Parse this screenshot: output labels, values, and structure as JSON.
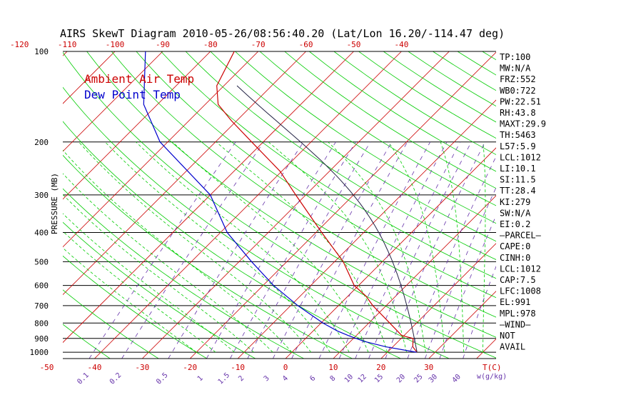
{
  "title": "AIRS SkewT Diagram 2010-05-26/08:56:40.20 (Lat/Lon 16.20/-114.47 deg)",
  "legend": {
    "ambient": "Ambient Air Temp",
    "dewpoint": "Dew Point Temp",
    "colors": {
      "ambient": "#cc0000",
      "dewpoint": "#0000cc",
      "dry_adiabat": "#00cc00",
      "isotherm": "#cc0000",
      "mixing_ratio": "#6633aa",
      "isobar": "#000000"
    }
  },
  "chart_data": {
    "type": "line",
    "title": "AIRS SkewT Diagram 2010-05-26/08:56:40.20 (Lat/Lon 16.20/-114.47 deg)",
    "ylabel": "PRESSURE (MB)",
    "xlabel_bottom": "T(C)",
    "xlabel_mix": "w(g/kg)",
    "y_scale": "log",
    "ylim": [
      1050,
      100
    ],
    "pressure_ticks": [
      "100",
      "200",
      "300",
      "400",
      "500",
      "600",
      "700",
      "800",
      "900",
      "1000"
    ],
    "top_ticks": [
      "-120",
      "-110",
      "-100",
      "-90",
      "-80",
      "-70",
      "-60",
      "-50",
      "-40"
    ],
    "bottom_ticks": [
      "-50",
      "-40",
      "-30",
      "-20",
      "-10",
      "0",
      "10",
      "20",
      "30"
    ],
    "mixing_ratio_ticks": [
      "0.1",
      "0.2",
      "0.5",
      "1",
      "1.5",
      "2",
      "3",
      "4",
      "6",
      "8",
      "10",
      "12",
      "15",
      "20",
      "25",
      "30",
      "40"
    ],
    "grid": true,
    "series": [
      {
        "name": "Ambient Air Temp",
        "pressure": [
          1000,
          960,
          900,
          880,
          800,
          700,
          650,
          600,
          500,
          400,
          300,
          250,
          200,
          170,
          150,
          130,
          100
        ],
        "temperature": [
          26.2,
          24.2,
          22.5,
          19.5,
          14.4,
          7.2,
          3.7,
          -0.9,
          -8.2,
          -18.8,
          -32.1,
          -40.4,
          -52.4,
          -61.1,
          -67.3,
          -71.5,
          -75.0
        ]
      },
      {
        "name": "Dew Point Temp",
        "pressure": [
          1000,
          960,
          920,
          880,
          850,
          800,
          700,
          600,
          500,
          400,
          300,
          200,
          150,
          100
        ],
        "temperature": [
          26.1,
          18.6,
          12.8,
          8.3,
          5.1,
          0.4,
          -8.5,
          -17.8,
          -27.4,
          -38.6,
          -50.0,
          -71.6,
          -82.9,
          -93.6
        ]
      }
    ]
  },
  "indices": [
    "TP:100",
    "MW:N/A",
    "FRZ:552",
    "WB0:722",
    "PW:22.51",
    "RH:43.8",
    "MAXT:29.9",
    "TH:5463",
    "L57:5.9",
    "LCL:1012",
    "LI:10.1",
    "SI:11.5",
    "TT:28.4",
    "KI:279",
    "SW:N/A",
    "EI:0.2",
    "—PARCEL—",
    "CAPE:0",
    "CINH:0",
    "LCL:1012",
    "CAP:7.5",
    "LFC:1008",
    "EL:991",
    "MPL:978",
    "—WIND—",
    "NOT",
    "AVAIL"
  ]
}
